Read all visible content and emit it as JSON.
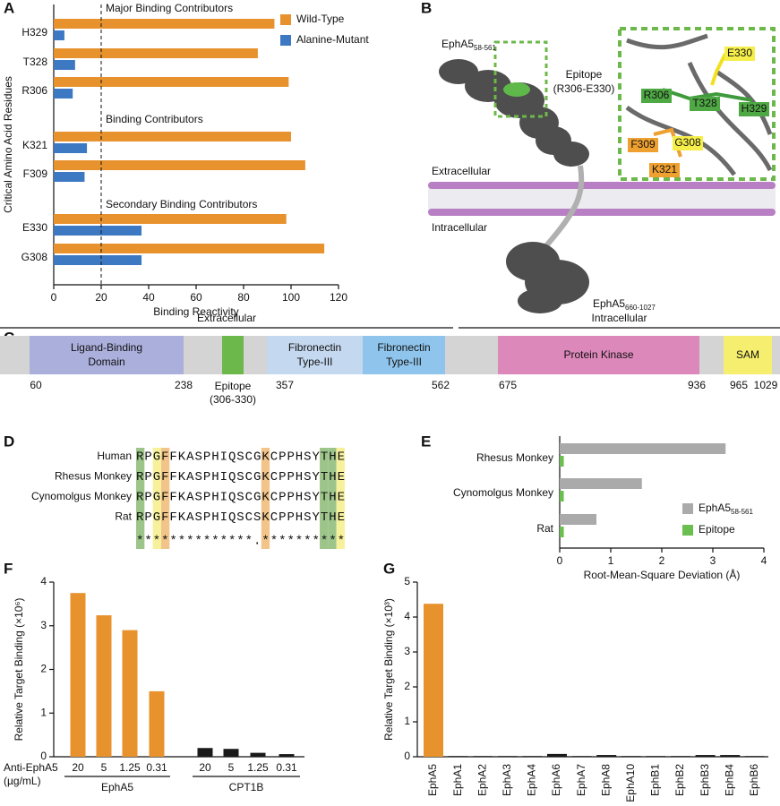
{
  "chart_data": [
    {
      "panel": "A",
      "type": "hbar",
      "xlabel": "Binding Reactivity",
      "ylabel": "Critical Amino Acid Residues",
      "categories": [
        "H329",
        "T328",
        "R306",
        "K321",
        "F309",
        "E330",
        "G308"
      ],
      "series": [
        {
          "name": "Wild-Type",
          "color": "#e8922e",
          "values": [
            93,
            86,
            99,
            100,
            106,
            98,
            114
          ]
        },
        {
          "name": "Alanine-Mutant",
          "color": "#3d79c3",
          "values": [
            4.5,
            9,
            8,
            14,
            13,
            37,
            37
          ]
        }
      ],
      "annotations": [
        "Major Binding Contributors",
        "Binding Contributors",
        "Secondary Binding Contributors"
      ],
      "threshold": 20,
      "xlim": [
        0,
        120
      ],
      "xticks": [
        0,
        20,
        40,
        60,
        80,
        100,
        120
      ]
    },
    {
      "panel": "E",
      "type": "hbar",
      "xlabel": "Root-Mean-Square Deviation (Å)",
      "categories": [
        "Rhesus Monkey",
        "Cynomolgus Monkey",
        "Rat"
      ],
      "series": [
        {
          "name": "EphA5",
          "name_subscript": "58-561",
          "color": "#aaaaaa",
          "values": [
            3.25,
            1.61,
            0.72
          ]
        },
        {
          "name": "Epitope",
          "color": "#6bbf4e",
          "values": [
            0.08,
            0.08,
            0.08
          ]
        }
      ],
      "xlim": [
        0,
        4
      ],
      "xticks": [
        0,
        1,
        2,
        3,
        4
      ]
    },
    {
      "panel": "F",
      "type": "bar",
      "ylabel": "Relative Target Binding (×10⁶)",
      "x_row_label": [
        "Anti-EphA5",
        "(µg/mL)"
      ],
      "series": [
        {
          "name": "EphA5",
          "color": "#e8922e",
          "categories": [
            "20",
            "5",
            "1.25",
            "0.31"
          ],
          "values": [
            3.75,
            3.24,
            2.9,
            1.5
          ]
        },
        {
          "name": "CPT1B",
          "color": "#1a1a1a",
          "categories": [
            "20",
            "5",
            "1.25",
            "0.31"
          ],
          "values": [
            0.2,
            0.18,
            0.09,
            0.06
          ]
        }
      ],
      "ylim": [
        0,
        4
      ],
      "yticks": [
        0,
        1,
        2,
        3,
        4
      ]
    },
    {
      "panel": "G",
      "type": "bar",
      "ylabel": "Relative Target Binding (×10³)",
      "categories": [
        "EphA5",
        "EphA1",
        "EphA2",
        "EphA3",
        "EphA4",
        "EphA6",
        "EphA7",
        "EphA8",
        "EphA10",
        "EphB1",
        "EphB2",
        "EphB3",
        "EphB4",
        "EphB6"
      ],
      "values": [
        4.38,
        0.02,
        0.02,
        0.02,
        0.02,
        0.08,
        0.02,
        0.05,
        0.02,
        0.02,
        0.02,
        0.05,
        0.05,
        0.02
      ],
      "colors": [
        "#e8922e",
        "#1a1a1a",
        "#1a1a1a",
        "#1a1a1a",
        "#1a1a1a",
        "#1a1a1a",
        "#1a1a1a",
        "#1a1a1a",
        "#1a1a1a",
        "#1a1a1a",
        "#1a1a1a",
        "#1a1a1a",
        "#1a1a1a",
        "#1a1a1a"
      ],
      "ylim": [
        0,
        5
      ],
      "yticks": [
        0,
        1,
        2,
        3,
        4,
        5
      ]
    }
  ],
  "panel_b": {
    "panel": "B",
    "construct_top": {
      "name": "EphA5",
      "subscript": "58-561"
    },
    "epitope_label": [
      "Epitope",
      "(R306-E330)"
    ],
    "extracellular": "Extracellular",
    "intracellular": "Intracellular",
    "construct_bottom": {
      "name": "EphA5",
      "subscript": "660-1027"
    },
    "residues": [
      "E330",
      "R306",
      "T328",
      "H329",
      "F309",
      "G308",
      "K321"
    ]
  },
  "panel_c": {
    "panel": "C",
    "regions": [
      "Extracellular",
      "Intracellular"
    ],
    "domains": [
      {
        "label": [
          "Ligand-Binding",
          "Domain"
        ],
        "color": "#abafdc"
      },
      {
        "label": [
          "Epitope",
          "(306-330)"
        ],
        "color": "#6cb84a"
      },
      {
        "label": [
          "Fibronectin",
          "Type-III"
        ],
        "color": "#c4d8ef"
      },
      {
        "label": [
          "Fibronectin",
          "Type-III"
        ],
        "color": "#8fc5ec"
      },
      {
        "label": [
          "Protein Kinase"
        ],
        "color": "#dd88bb"
      },
      {
        "label": [
          "SAM"
        ],
        "color": "#f6ee6e"
      }
    ],
    "positions": [
      "60",
      "238",
      "357",
      "562",
      "675",
      "936",
      "965",
      "1029"
    ]
  },
  "panel_d": {
    "panel": "D",
    "rows": [
      {
        "species": "Human",
        "sequence": "RPGFFKASPHIQSCGKCPPHSYTHE"
      },
      {
        "species": "Rhesus Monkey",
        "sequence": "RPGFFKASPHIQSCGKCPPHSYTHE"
      },
      {
        "species": "Cynomolgus Monkey",
        "sequence": "RPGFFKASPHIQSCGKCPPHSYTHE"
      },
      {
        "species": "Rat",
        "sequence": "RPGFFKASPHIQSCSKCPPHSYTHE"
      }
    ],
    "consensus": "**************.**********"
  }
}
